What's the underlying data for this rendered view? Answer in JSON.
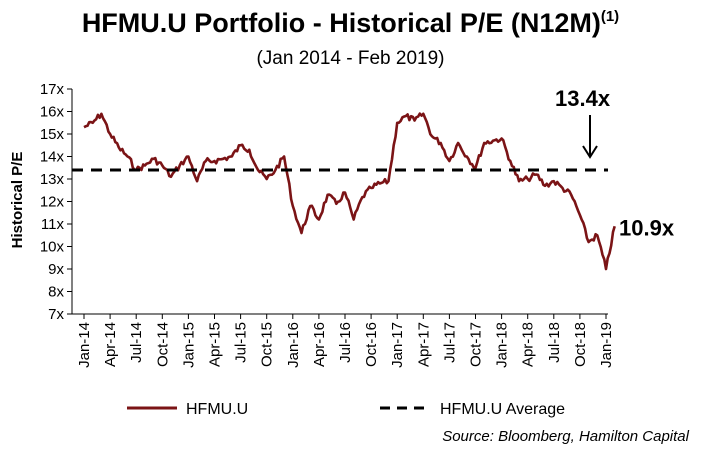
{
  "chart_data": {
    "type": "line",
    "title": "HFMU.U Portfolio - Historical P/E (N12M)",
    "title_superscript": "(1)",
    "subtitle": "(Jan 2014 - Feb 2019)",
    "ylabel": "Historical P/E",
    "xlabel": "",
    "ylim": [
      7,
      17
    ],
    "y_ticks": [
      "7x",
      "8x",
      "9x",
      "10x",
      "11x",
      "12x",
      "13x",
      "14x",
      "15x",
      "16x",
      "17x"
    ],
    "x_ticks": [
      "Jan-14",
      "Apr-14",
      "Jul-14",
      "Oct-14",
      "Jan-15",
      "Apr-15",
      "Jul-15",
      "Oct-15",
      "Jan-16",
      "Apr-16",
      "Jul-16",
      "Oct-16",
      "Jan-17",
      "Apr-17",
      "Jul-17",
      "Oct-17",
      "Jan-18",
      "Apr-18",
      "Jul-18",
      "Oct-18",
      "Jan-19"
    ],
    "grid": false,
    "legend_position": "bottom",
    "series": [
      {
        "name": "HFMU.U",
        "color": "#7b1416",
        "style": "solid",
        "x": [
          "2014-01",
          "2014-02",
          "2014-03",
          "2014-04",
          "2014-05",
          "2014-06",
          "2014-07",
          "2014-08",
          "2014-09",
          "2014-10",
          "2014-11",
          "2014-12",
          "2015-01",
          "2015-02",
          "2015-03",
          "2015-04",
          "2015-05",
          "2015-06",
          "2015-07",
          "2015-08",
          "2015-09",
          "2015-10",
          "2015-11",
          "2015-12",
          "2016-01",
          "2016-02",
          "2016-03",
          "2016-04",
          "2016-05",
          "2016-06",
          "2016-07",
          "2016-08",
          "2016-09",
          "2016-10",
          "2016-11",
          "2016-12",
          "2017-01",
          "2017-02",
          "2017-03",
          "2017-04",
          "2017-05",
          "2017-06",
          "2017-07",
          "2017-08",
          "2017-09",
          "2017-10",
          "2017-11",
          "2017-12",
          "2018-01",
          "2018-02",
          "2018-03",
          "2018-04",
          "2018-05",
          "2018-06",
          "2018-07",
          "2018-08",
          "2018-09",
          "2018-10",
          "2018-11",
          "2018-12",
          "2019-01",
          "2019-02"
        ],
        "values": [
          15.3,
          15.5,
          15.9,
          15.0,
          14.4,
          14.0,
          13.4,
          13.6,
          13.9,
          13.6,
          13.1,
          13.6,
          14.0,
          12.9,
          13.8,
          13.8,
          13.9,
          14.0,
          14.5,
          14.3,
          13.4,
          13.0,
          13.4,
          14.0,
          11.8,
          10.6,
          11.8,
          11.2,
          12.3,
          11.9,
          12.4,
          11.2,
          12.2,
          12.6,
          12.8,
          12.9,
          15.5,
          15.8,
          15.6,
          15.9,
          14.9,
          14.6,
          13.8,
          14.6,
          14.0,
          13.5,
          14.6,
          14.7,
          14.8,
          13.8,
          12.9,
          13.0,
          13.2,
          12.7,
          12.9,
          12.6,
          12.3,
          11.4,
          10.2,
          10.5,
          9.0,
          10.9
        ]
      },
      {
        "name": "HFMU.U Average",
        "color": "#000000",
        "style": "dashed",
        "constant": 13.4
      }
    ],
    "annotations": [
      {
        "text": "13.4x",
        "value": 13.4
      },
      {
        "text": "10.9x",
        "value": 10.9
      }
    ]
  },
  "source": "Source: Bloomberg, Hamilton Capital"
}
